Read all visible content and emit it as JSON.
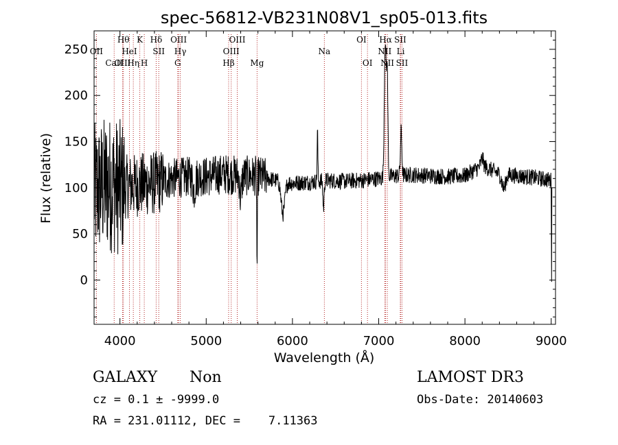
{
  "chart_data": {
    "type": "line",
    "title": "spec-56812-VB231N08V1_sp05-013.fits",
    "xlabel": "Wavelength (Å)",
    "ylabel": "Flux (relative)",
    "xlim": [
      3700,
      9050
    ],
    "ylim": [
      -48,
      270
    ],
    "xticks": [
      4000,
      5000,
      6000,
      7000,
      8000,
      9000
    ],
    "yticks": [
      0,
      50,
      100,
      150,
      200,
      250
    ],
    "line_color": "#000000",
    "marker_color": "#b22222",
    "spectrum_anchors": [
      [
        3700,
        95
      ],
      [
        3850,
        105
      ],
      [
        4000,
        100
      ],
      [
        4200,
        103
      ],
      [
        4400,
        105
      ],
      [
        4600,
        110
      ],
      [
        4800,
        112
      ],
      [
        5000,
        112
      ],
      [
        5200,
        115
      ],
      [
        5400,
        113
      ],
      [
        5600,
        113
      ],
      [
        5800,
        108
      ],
      [
        6000,
        105
      ],
      [
        6200,
        106
      ],
      [
        6400,
        108
      ],
      [
        6600,
        107
      ],
      [
        6800,
        108
      ],
      [
        7000,
        110
      ],
      [
        7200,
        113
      ],
      [
        7400,
        114
      ],
      [
        7600,
        113
      ],
      [
        7800,
        112
      ],
      [
        8000,
        113
      ],
      [
        8200,
        124
      ],
      [
        8400,
        115
      ],
      [
        8600,
        113
      ],
      [
        8800,
        111
      ],
      [
        9000,
        108
      ]
    ],
    "spectrum_features": [
      {
        "center": 7075,
        "width": 14,
        "peak": 145
      },
      {
        "center": 7098,
        "width": 12,
        "peak": 115
      },
      {
        "center": 7260,
        "width": 12,
        "peak": 48
      },
      {
        "center": 6290,
        "width": 6,
        "peak": 55
      },
      {
        "center": 6360,
        "width": 10,
        "peak": -30
      },
      {
        "center": 5590,
        "width": 5,
        "peak": -100
      },
      {
        "center": 5400,
        "width": 15,
        "peak": -25
      },
      {
        "center": 5890,
        "width": 30,
        "peak": -35
      },
      {
        "center": 4860,
        "width": 20,
        "peak": -15
      },
      {
        "center": 8200,
        "width": 20,
        "peak": 8
      },
      {
        "center": 8450,
        "width": 30,
        "peak": -15
      }
    ],
    "spectrum_noise": [
      {
        "from": 3700,
        "to": 4050,
        "amplitude": 75
      },
      {
        "from": 4050,
        "to": 4500,
        "amplitude": 35
      },
      {
        "from": 4500,
        "to": 5700,
        "amplitude": 22
      },
      {
        "from": 5700,
        "to": 9050,
        "amplitude": 9
      }
    ],
    "lines": [
      {
        "label": "OII",
        "wl": 3727,
        "row": 2
      },
      {
        "label": "CaII",
        "wl": 3933,
        "row": 3
      },
      {
        "label": "OIII",
        "wl": 4030,
        "row": 3
      },
      {
        "label": "Hθ",
        "wl": 4040,
        "row": 1
      },
      {
        "label": "HeI",
        "wl": 4110,
        "row": 2
      },
      {
        "label": "Hη",
        "wl": 4155,
        "row": 3
      },
      {
        "label": "K",
        "wl": 4230,
        "row": 1
      },
      {
        "label": "H",
        "wl": 4282,
        "row": 3
      },
      {
        "label": "Hδ",
        "wl": 4420,
        "row": 1
      },
      {
        "label": "SII",
        "wl": 4450,
        "row": 2
      },
      {
        "label": "OIII",
        "wl": 4680,
        "row": 1
      },
      {
        "label": "Hγ",
        "wl": 4700,
        "row": 2
      },
      {
        "label": "G",
        "wl": 4670,
        "row": 3
      },
      {
        "label": "Hβ",
        "wl": 5260,
        "row": 3
      },
      {
        "label": "OIII",
        "wl": 5360,
        "row": 1
      },
      {
        "label": "OIII",
        "wl": 5290,
        "row": 2
      },
      {
        "label": "Mg",
        "wl": 5590,
        "row": 3
      },
      {
        "label": "Na",
        "wl": 6370,
        "row": 2
      },
      {
        "label": "OI",
        "wl": 6800,
        "row": 1
      },
      {
        "label": "OI",
        "wl": 6870,
        "row": 3
      },
      {
        "label": "Hα",
        "wl": 7080,
        "row": 1
      },
      {
        "label": "NII",
        "wl": 7070,
        "row": 2
      },
      {
        "label": "NII",
        "wl": 7100,
        "row": 3
      },
      {
        "label": "SII",
        "wl": 7250,
        "row": 1
      },
      {
        "label": "Li",
        "wl": 7255,
        "row": 2
      },
      {
        "label": "SII",
        "wl": 7270,
        "row": 3
      }
    ]
  },
  "info": {
    "class": "GALAXY",
    "subclass": "Non",
    "survey": "LAMOST DR3",
    "cz_line": "cz = 0.1 ± -9999.0",
    "obs_date": "Obs-Date: 20140603",
    "coords": "RA = 231.01112, DEC =    7.11363"
  }
}
